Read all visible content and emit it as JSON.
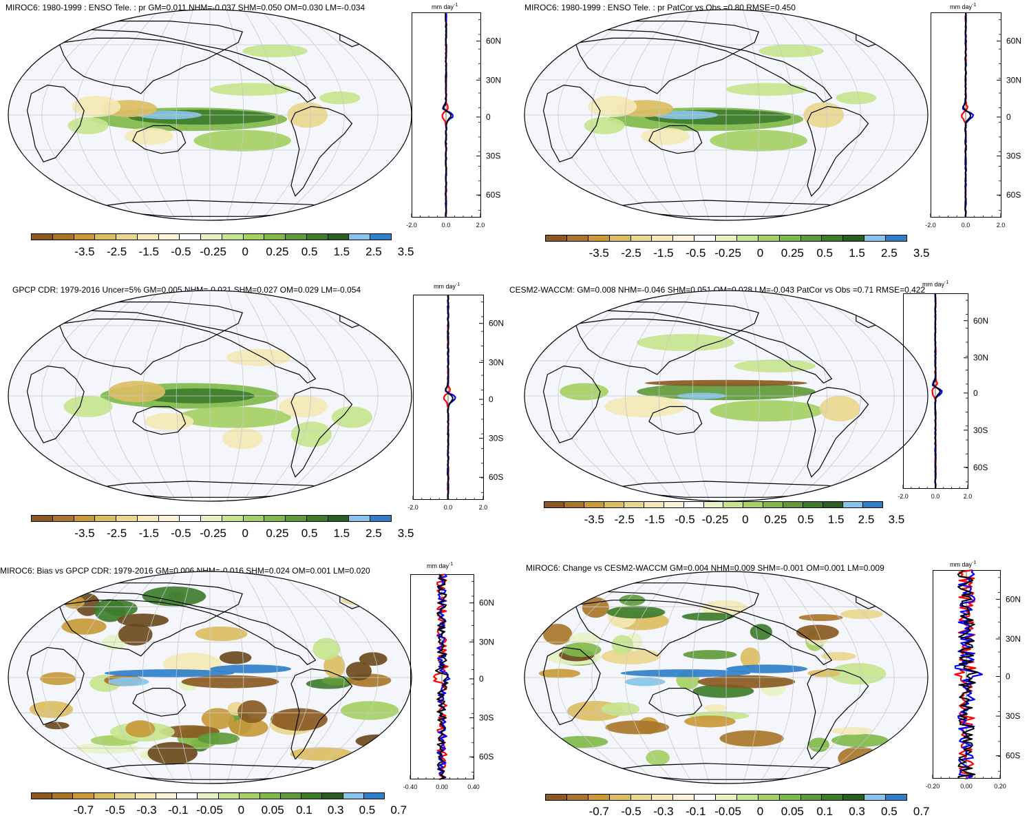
{
  "units": "mm day",
  "units_exp": "-1",
  "colors": {
    "ocean": "#f4f6fc",
    "coast": "#000000",
    "grid": "#c8c8c8",
    "series_red": "#ff0000",
    "series_blue": "#0000ff",
    "series_black": "#000000"
  },
  "palette": [
    "#6b4a1e",
    "#8a5a22",
    "#a8762a",
    "#c89a3a",
    "#dbbd62",
    "#e9d68f",
    "#f3e8b6",
    "#faf3d8",
    "#ffffff",
    "#e6f2c4",
    "#c6e48e",
    "#a4d064",
    "#80b84a",
    "#5f9a3a",
    "#3e7c2c",
    "#2a5e22",
    "#88c4ea",
    "#2f7fc8"
  ],
  "lat_ticks": [
    "60N",
    "30N",
    "0",
    "30S",
    "60S"
  ],
  "panels": [
    {
      "title": "MIROC6: 1980-1999 : ENSO Tele. : pr GM=0.011 NHM=-0.037 SHM=0.050 OM=0.030 LM=-0.034",
      "cbar_labels": [
        "-3.5",
        "-2.5",
        "-1.5",
        "-0.5",
        "-0.25",
        "0",
        "0.25",
        "0.5",
        "1.5",
        "2.5",
        "3.5"
      ],
      "zonal_ticks": [
        "-2.0",
        "0.0",
        "2.0"
      ]
    },
    {
      "title": "MIROC6: 1980-1999 : ENSO Tele. : pr PatCor vs Obs =0.80 RMSE=0.450",
      "cbar_labels": [
        "-3.5",
        "-2.5",
        "-1.5",
        "-0.5",
        "-0.25",
        "0",
        "0.25",
        "0.5",
        "1.5",
        "2.5",
        "3.5"
      ],
      "zonal_ticks": [
        "-2.0",
        "0.0",
        "2.0"
      ]
    },
    {
      "title": "GPCP CDR: 1979-2016 Uncer=5% GM=0.005 NHM=-0.021 SHM=0.027 OM=0.029 LM=-0.054",
      "cbar_labels": [
        "-3.5",
        "-2.5",
        "-1.5",
        "-0.5",
        "-0.25",
        "0",
        "0.25",
        "0.5",
        "1.5",
        "2.5",
        "3.5"
      ],
      "zonal_ticks": [
        "-2.0",
        "0.0",
        "2.0"
      ]
    },
    {
      "title": "CESM2-WACCM: GM=0.008 NHM=-0.046 SHM=0.051 OM=0.028 LM=-0.043 PatCor vs Obs =0.71 RMSE=0.422",
      "cbar_labels": [
        "-3.5",
        "-2.5",
        "-1.5",
        "-0.5",
        "-0.25",
        "0",
        "0.25",
        "0.5",
        "1.5",
        "2.5",
        "3.5"
      ],
      "zonal_ticks": [
        "-2.0",
        "0.0",
        "2.0"
      ]
    },
    {
      "title": "MIROC6: Bias vs GPCP CDR: 1979-2016 GM=0.006 NHM=-0.016 SHM=0.024 OM=0.001 LM=0.020",
      "cbar_labels": [
        "-0.7",
        "-0.5",
        "-0.3",
        "-0.1",
        "-0.05",
        "0",
        "0.05",
        "0.1",
        "0.3",
        "0.5",
        "0.7"
      ],
      "zonal_ticks": [
        "-0.40",
        "0.00",
        "0.40"
      ]
    },
    {
      "title": "MIROC6: Change vs CESM2-WACCM GM=0.004 NHM=0.009 SHM=-0.001 OM=0.001 LM=0.009",
      "cbar_labels": [
        "-0.7",
        "-0.5",
        "-0.3",
        "-0.1",
        "-0.05",
        "0",
        "0.05",
        "0.1",
        "0.3",
        "0.5",
        "0.7"
      ],
      "zonal_ticks": [
        "-0.20",
        "0.00",
        "0.20"
      ]
    }
  ]
}
